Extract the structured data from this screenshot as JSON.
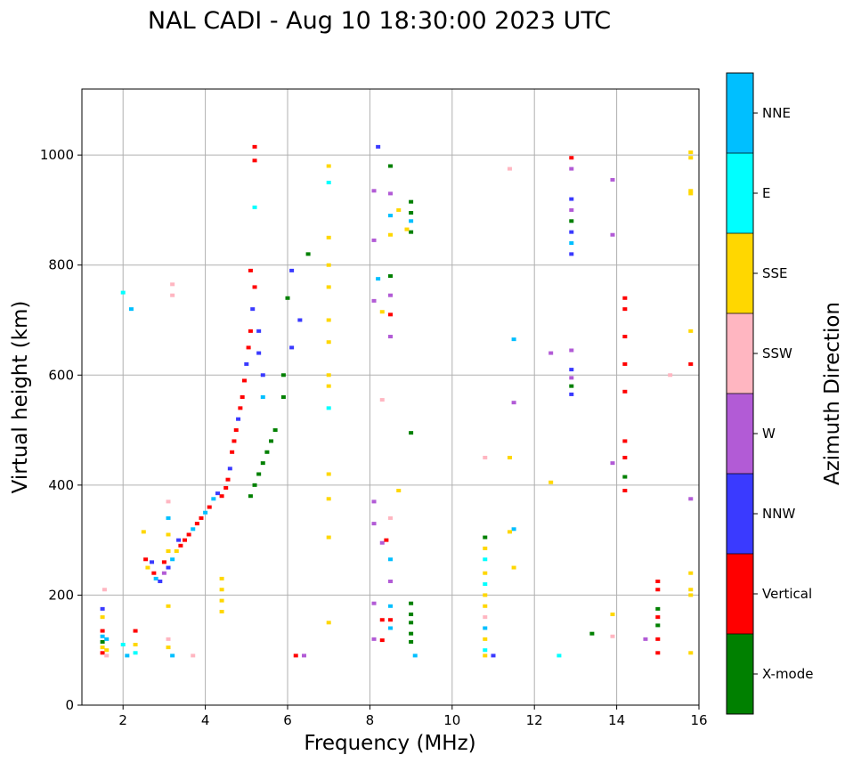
{
  "chart_data": {
    "type": "scatter",
    "title": "NAL CADI - Aug 10 18:30:00 2023 UTC",
    "xlabel": "Frequency (MHz)",
    "ylabel": "Virtual height (km)",
    "xlim": [
      1,
      16
    ],
    "ylim": [
      0,
      1120
    ],
    "x_ticks": [
      2,
      4,
      6,
      8,
      10,
      12,
      14,
      16
    ],
    "y_ticks": [
      0,
      200,
      400,
      600,
      800,
      1000
    ],
    "grid": true,
    "colorbar": {
      "label": "Azimuth Direction",
      "position": "right",
      "categories": [
        {
          "name": "X-mode",
          "color": "#008000"
        },
        {
          "name": "Vertical",
          "color": "#ff0000"
        },
        {
          "name": "NNW",
          "color": "#3a3aff"
        },
        {
          "name": "W",
          "color": "#b25bd6"
        },
        {
          "name": "SSW",
          "color": "#ffb6c1"
        },
        {
          "name": "SSE",
          "color": "#ffd700"
        },
        {
          "name": "E",
          "color": "#00ffff"
        },
        {
          "name": "NNE",
          "color": "#00bfff"
        }
      ]
    },
    "points": [
      [
        1.5,
        175,
        "NNW"
      ],
      [
        1.5,
        160,
        "SSE"
      ],
      [
        1.5,
        135,
        "Vertical"
      ],
      [
        1.5,
        125,
        "NNE"
      ],
      [
        1.5,
        115,
        "X-mode"
      ],
      [
        1.5,
        105,
        "SSE"
      ],
      [
        1.5,
        95,
        "Vertical"
      ],
      [
        1.55,
        210,
        "SSW"
      ],
      [
        1.6,
        120,
        "NNE"
      ],
      [
        1.6,
        100,
        "SSE"
      ],
      [
        1.6,
        90,
        "SSW"
      ],
      [
        2.0,
        750,
        "E"
      ],
      [
        2.2,
        720,
        "NNE"
      ],
      [
        2.0,
        110,
        "E"
      ],
      [
        2.1,
        90,
        "NNE"
      ],
      [
        2.3,
        135,
        "Vertical"
      ],
      [
        2.3,
        110,
        "SSE"
      ],
      [
        2.3,
        95,
        "E"
      ],
      [
        2.5,
        315,
        "SSE"
      ],
      [
        2.55,
        265,
        "Vertical"
      ],
      [
        2.6,
        250,
        "SSE"
      ],
      [
        2.7,
        260,
        "NNW"
      ],
      [
        2.75,
        240,
        "Vertical"
      ],
      [
        2.8,
        230,
        "NNE"
      ],
      [
        2.9,
        225,
        "NNW"
      ],
      [
        3.0,
        240,
        "W"
      ],
      [
        3.0,
        260,
        "Vertical"
      ],
      [
        3.1,
        250,
        "NNW"
      ],
      [
        3.2,
        265,
        "NNE"
      ],
      [
        3.3,
        280,
        "SSE"
      ],
      [
        3.35,
        300,
        "NNW"
      ],
      [
        3.4,
        290,
        "Vertical"
      ],
      [
        3.5,
        300,
        "Vertical"
      ],
      [
        3.6,
        310,
        "Vertical"
      ],
      [
        3.7,
        320,
        "NNE"
      ],
      [
        3.8,
        330,
        "Vertical"
      ],
      [
        3.9,
        340,
        "Vertical"
      ],
      [
        4.0,
        350,
        "NNE"
      ],
      [
        4.1,
        360,
        "Vertical"
      ],
      [
        4.2,
        375,
        "NNE"
      ],
      [
        4.3,
        385,
        "NNW"
      ],
      [
        4.4,
        380,
        "Vertical"
      ],
      [
        4.5,
        395,
        "Vertical"
      ],
      [
        4.55,
        410,
        "Vertical"
      ],
      [
        4.6,
        430,
        "NNW"
      ],
      [
        4.65,
        460,
        "Vertical"
      ],
      [
        4.7,
        480,
        "Vertical"
      ],
      [
        4.75,
        500,
        "Vertical"
      ],
      [
        4.8,
        520,
        "NNW"
      ],
      [
        4.85,
        540,
        "Vertical"
      ],
      [
        4.9,
        560,
        "Vertical"
      ],
      [
        4.95,
        590,
        "Vertical"
      ],
      [
        5.0,
        620,
        "NNW"
      ],
      [
        5.05,
        650,
        "Vertical"
      ],
      [
        5.1,
        680,
        "Vertical"
      ],
      [
        5.15,
        720,
        "NNW"
      ],
      [
        5.2,
        760,
        "Vertical"
      ],
      [
        5.1,
        790,
        "Vertical"
      ],
      [
        5.2,
        1015,
        "Vertical"
      ],
      [
        5.2,
        990,
        "Vertical"
      ],
      [
        5.2,
        905,
        "E"
      ],
      [
        5.3,
        680,
        "NNW"
      ],
      [
        5.3,
        640,
        "NNW"
      ],
      [
        5.4,
        600,
        "NNW"
      ],
      [
        5.4,
        560,
        "NNE"
      ],
      [
        3.1,
        370,
        "SSW"
      ],
      [
        3.1,
        340,
        "NNE"
      ],
      [
        3.1,
        310,
        "SSE"
      ],
      [
        3.1,
        280,
        "SSE"
      ],
      [
        3.1,
        180,
        "SSE"
      ],
      [
        3.1,
        120,
        "SSW"
      ],
      [
        3.1,
        105,
        "SSE"
      ],
      [
        3.2,
        765,
        "SSW"
      ],
      [
        3.2,
        745,
        "SSW"
      ],
      [
        3.2,
        90,
        "NNE"
      ],
      [
        3.7,
        90,
        "SSW"
      ],
      [
        4.4,
        230,
        "SSE"
      ],
      [
        4.4,
        210,
        "SSE"
      ],
      [
        4.4,
        190,
        "SSE"
      ],
      [
        4.4,
        170,
        "SSE"
      ],
      [
        5.1,
        380,
        "X-mode"
      ],
      [
        5.2,
        400,
        "X-mode"
      ],
      [
        5.3,
        420,
        "X-mode"
      ],
      [
        5.4,
        440,
        "X-mode"
      ],
      [
        5.5,
        460,
        "X-mode"
      ],
      [
        5.6,
        480,
        "X-mode"
      ],
      [
        5.7,
        500,
        "X-mode"
      ],
      [
        5.9,
        560,
        "X-mode"
      ],
      [
        5.9,
        600,
        "X-mode"
      ],
      [
        6.0,
        740,
        "X-mode"
      ],
      [
        6.1,
        790,
        "NNW"
      ],
      [
        6.1,
        650,
        "NNW"
      ],
      [
        6.3,
        700,
        "NNW"
      ],
      [
        6.5,
        820,
        "X-mode"
      ],
      [
        6.2,
        90,
        "Vertical"
      ],
      [
        6.4,
        90,
        "W"
      ],
      [
        7.0,
        980,
        "SSE"
      ],
      [
        7.0,
        950,
        "E"
      ],
      [
        7.0,
        850,
        "SSE"
      ],
      [
        7.0,
        800,
        "SSE"
      ],
      [
        7.0,
        760,
        "SSE"
      ],
      [
        7.0,
        700,
        "SSE"
      ],
      [
        7.0,
        660,
        "SSE"
      ],
      [
        7.0,
        600,
        "SSE"
      ],
      [
        7.0,
        580,
        "SSE"
      ],
      [
        7.0,
        540,
        "E"
      ],
      [
        7.0,
        420,
        "SSE"
      ],
      [
        7.0,
        375,
        "SSE"
      ],
      [
        7.0,
        305,
        "SSE"
      ],
      [
        7.0,
        150,
        "SSE"
      ],
      [
        8.2,
        1015,
        "NNW"
      ],
      [
        8.1,
        935,
        "W"
      ],
      [
        8.1,
        845,
        "W"
      ],
      [
        8.2,
        775,
        "NNE"
      ],
      [
        8.1,
        735,
        "W"
      ],
      [
        8.3,
        715,
        "SSE"
      ],
      [
        8.5,
        980,
        "X-mode"
      ],
      [
        8.5,
        930,
        "W"
      ],
      [
        8.5,
        890,
        "NNE"
      ],
      [
        8.5,
        855,
        "SSE"
      ],
      [
        8.7,
        900,
        "SSE"
      ],
      [
        8.5,
        780,
        "X-mode"
      ],
      [
        8.5,
        745,
        "W"
      ],
      [
        8.5,
        710,
        "Vertical"
      ],
      [
        8.5,
        670,
        "W"
      ],
      [
        8.3,
        555,
        "SSW"
      ],
      [
        8.1,
        370,
        "W"
      ],
      [
        8.1,
        330,
        "W"
      ],
      [
        8.3,
        295,
        "W"
      ],
      [
        8.4,
        300,
        "Vertical"
      ],
      [
        8.5,
        340,
        "SSW"
      ],
      [
        8.5,
        265,
        "NNE"
      ],
      [
        8.5,
        225,
        "W"
      ],
      [
        8.1,
        185,
        "W"
      ],
      [
        8.5,
        180,
        "NNE"
      ],
      [
        8.3,
        155,
        "Vertical"
      ],
      [
        8.5,
        155,
        "Vertical"
      ],
      [
        8.5,
        140,
        "NNE"
      ],
      [
        8.1,
        120,
        "W"
      ],
      [
        8.3,
        118,
        "Vertical"
      ],
      [
        8.7,
        390,
        "SSE"
      ],
      [
        9.0,
        915,
        "X-mode"
      ],
      [
        9.0,
        895,
        "X-mode"
      ],
      [
        9.0,
        880,
        "NNE"
      ],
      [
        9.0,
        860,
        "X-mode"
      ],
      [
        8.9,
        865,
        "SSE"
      ],
      [
        9.0,
        495,
        "X-mode"
      ],
      [
        9.0,
        185,
        "X-mode"
      ],
      [
        9.0,
        165,
        "X-mode"
      ],
      [
        9.0,
        150,
        "X-mode"
      ],
      [
        9.0,
        130,
        "X-mode"
      ],
      [
        9.0,
        115,
        "X-mode"
      ],
      [
        9.1,
        90,
        "NNE"
      ],
      [
        10.8,
        305,
        "X-mode"
      ],
      [
        10.8,
        285,
        "SSE"
      ],
      [
        10.8,
        265,
        "E"
      ],
      [
        10.8,
        240,
        "SSE"
      ],
      [
        10.8,
        220,
        "E"
      ],
      [
        10.8,
        200,
        "SSE"
      ],
      [
        10.8,
        180,
        "SSE"
      ],
      [
        10.8,
        160,
        "SSW"
      ],
      [
        10.8,
        140,
        "NNE"
      ],
      [
        10.8,
        120,
        "SSE"
      ],
      [
        10.8,
        100,
        "E"
      ],
      [
        10.8,
        90,
        "SSE"
      ],
      [
        11.0,
        90,
        "NNW"
      ],
      [
        10.8,
        450,
        "SSW"
      ],
      [
        11.4,
        975,
        "SSW"
      ],
      [
        11.5,
        665,
        "NNE"
      ],
      [
        11.5,
        550,
        "W"
      ],
      [
        11.4,
        450,
        "SSE"
      ],
      [
        11.5,
        320,
        "NNE"
      ],
      [
        11.5,
        250,
        "SSE"
      ],
      [
        11.4,
        315,
        "SSE"
      ],
      [
        12.4,
        405,
        "SSE"
      ],
      [
        12.4,
        640,
        "W"
      ],
      [
        12.6,
        90,
        "E"
      ],
      [
        12.9,
        995,
        "Vertical"
      ],
      [
        12.9,
        975,
        "W"
      ],
      [
        12.9,
        920,
        "NNW"
      ],
      [
        12.9,
        900,
        "W"
      ],
      [
        12.9,
        880,
        "X-mode"
      ],
      [
        12.9,
        860,
        "NNW"
      ],
      [
        12.9,
        840,
        "NNE"
      ],
      [
        12.9,
        820,
        "NNW"
      ],
      [
        12.9,
        645,
        "W"
      ],
      [
        12.9,
        610,
        "NNW"
      ],
      [
        12.9,
        595,
        "W"
      ],
      [
        12.9,
        580,
        "X-mode"
      ],
      [
        12.9,
        565,
        "NNW"
      ],
      [
        13.4,
        130,
        "X-mode"
      ],
      [
        13.9,
        955,
        "W"
      ],
      [
        13.9,
        855,
        "W"
      ],
      [
        13.9,
        440,
        "W"
      ],
      [
        13.9,
        165,
        "SSE"
      ],
      [
        13.9,
        125,
        "SSW"
      ],
      [
        14.2,
        740,
        "Vertical"
      ],
      [
        14.2,
        720,
        "Vertical"
      ],
      [
        14.2,
        670,
        "Vertical"
      ],
      [
        14.2,
        620,
        "Vertical"
      ],
      [
        14.2,
        570,
        "Vertical"
      ],
      [
        14.2,
        480,
        "Vertical"
      ],
      [
        14.2,
        450,
        "Vertical"
      ],
      [
        14.2,
        415,
        "X-mode"
      ],
      [
        14.2,
        390,
        "Vertical"
      ],
      [
        14.7,
        120,
        "W"
      ],
      [
        15.0,
        225,
        "Vertical"
      ],
      [
        15.0,
        210,
        "Vertical"
      ],
      [
        15.0,
        175,
        "X-mode"
      ],
      [
        15.0,
        160,
        "Vertical"
      ],
      [
        15.0,
        145,
        "X-mode"
      ],
      [
        15.0,
        120,
        "Vertical"
      ],
      [
        15.0,
        95,
        "Vertical"
      ],
      [
        15.3,
        600,
        "SSW"
      ],
      [
        15.8,
        1005,
        "SSE"
      ],
      [
        15.8,
        995,
        "SSE"
      ],
      [
        15.8,
        935,
        "SSE"
      ],
      [
        15.8,
        930,
        "SSE"
      ],
      [
        15.8,
        680,
        "SSE"
      ],
      [
        15.8,
        620,
        "Vertical"
      ],
      [
        15.8,
        375,
        "W"
      ],
      [
        15.8,
        240,
        "SSE"
      ],
      [
        15.8,
        210,
        "SSE"
      ],
      [
        15.8,
        200,
        "SSE"
      ],
      [
        15.8,
        95,
        "SSE"
      ]
    ]
  }
}
